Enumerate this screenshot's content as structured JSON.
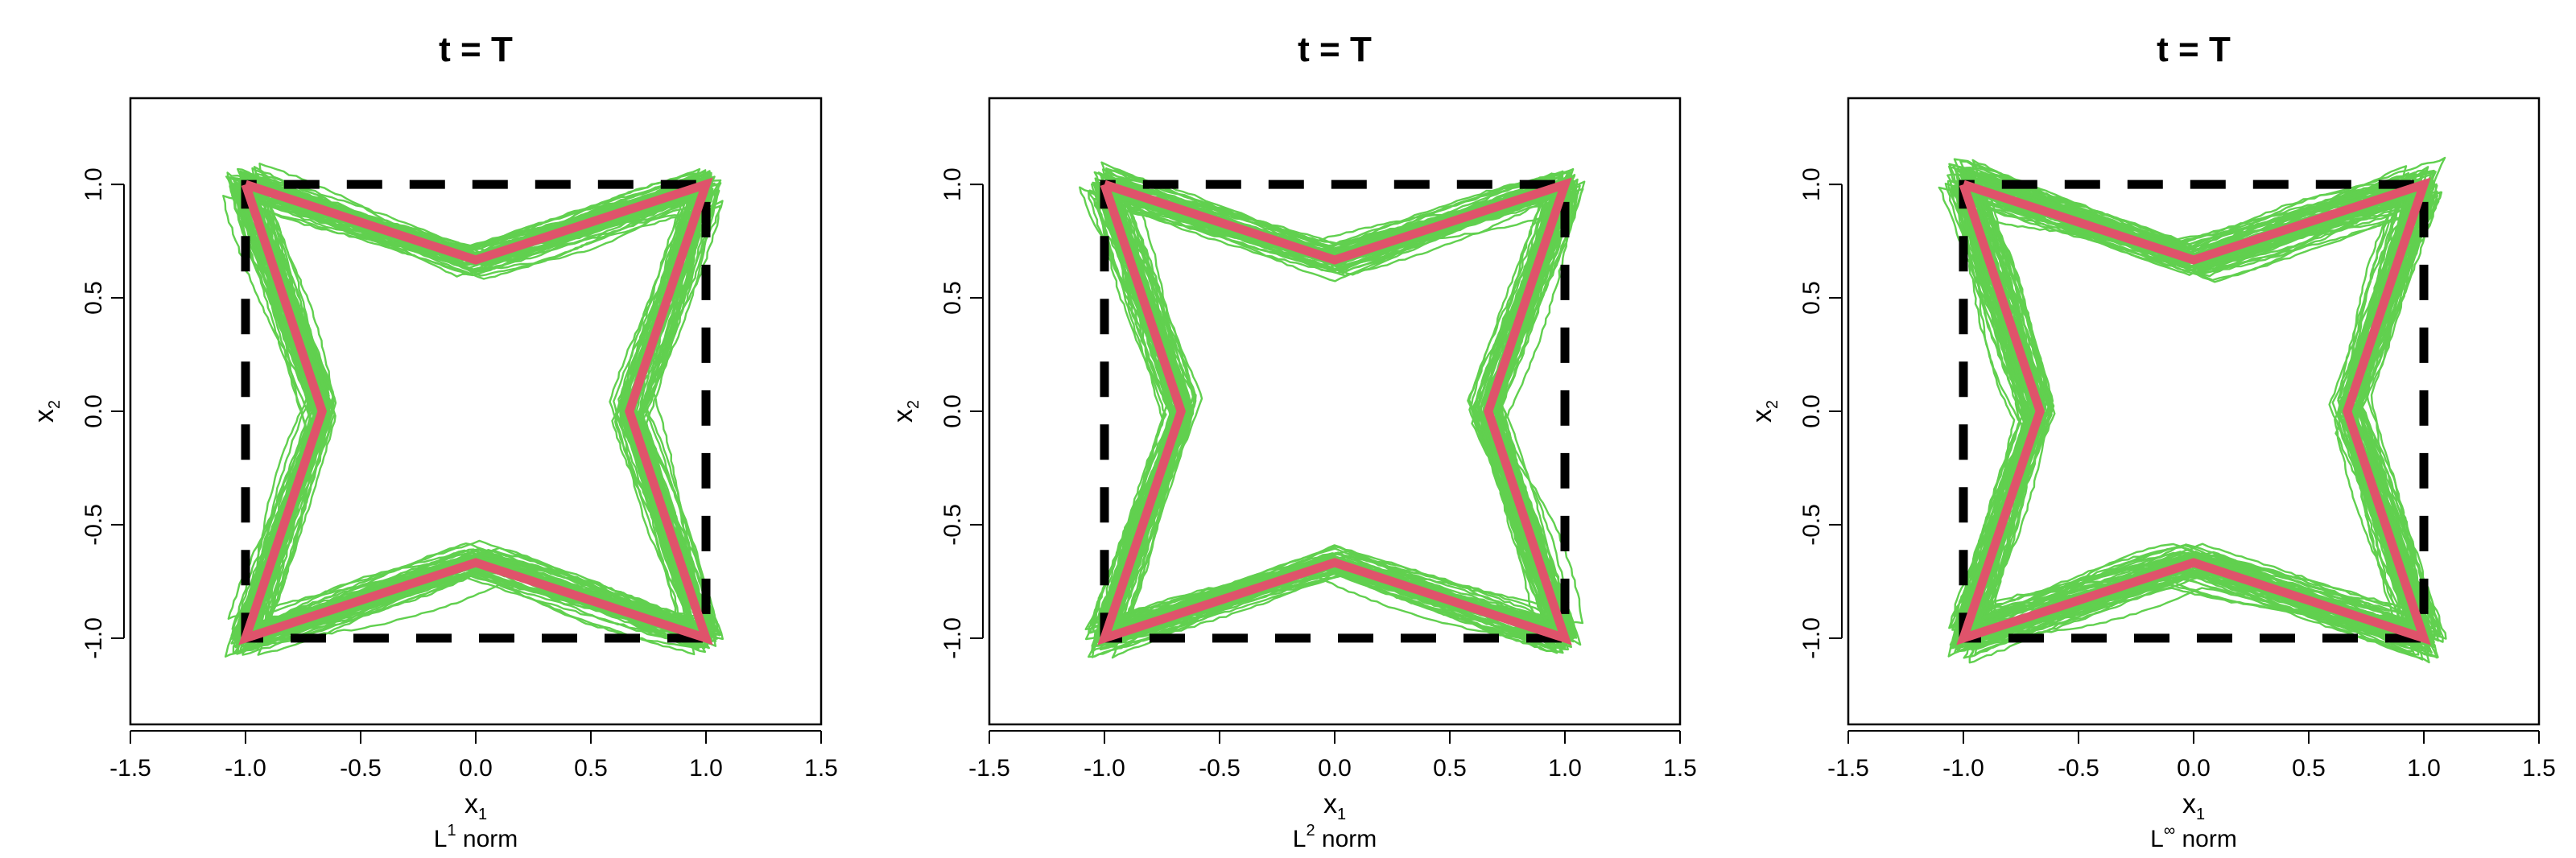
{
  "chart_data": [
    {
      "type": "line",
      "title": "t = T",
      "xlabel": "x",
      "xlabel_sub": "1",
      "ylabel": "x",
      "ylabel_sub": "2",
      "caption_prefix": "L",
      "caption_sup": "1",
      "caption_suffix": "norm",
      "xlim": [
        -1.5,
        1.5
      ],
      "ylim": [
        -1.38,
        1.38
      ],
      "xticks": [
        -1.5,
        -1.0,
        -0.5,
        0.0,
        0.5,
        1.0,
        1.5
      ],
      "xtick_labels": [
        "-1.5",
        "-1.0",
        "-0.5",
        "0.0",
        "0.5",
        "1.0",
        "1.5"
      ],
      "yticks": [
        -1.0,
        -0.5,
        0.0,
        0.5,
        1.0
      ],
      "ytick_labels": [
        "-1.0",
        "-0.5",
        "0.0",
        "0.5",
        "1.0"
      ],
      "grid": false,
      "colors": {
        "target": "#DF536B",
        "samples": "#61D04F",
        "square": "#000000"
      },
      "square": {
        "x": [
          -1,
          1,
          1,
          -1,
          -1
        ],
        "y": [
          -1,
          -1,
          1,
          1,
          -1
        ]
      },
      "target_curve": {
        "x": [
          -1.0,
          0.0,
          1.0,
          0.667,
          1.0,
          0.0,
          -1.0,
          -0.667,
          -1.0
        ],
        "y": [
          1.0,
          0.667,
          1.0,
          0.0,
          -1.0,
          -0.667,
          -1.0,
          0.0,
          1.0
        ]
      }
    },
    {
      "type": "line",
      "title": "t = T",
      "xlabel": "x",
      "xlabel_sub": "1",
      "ylabel": "x",
      "ylabel_sub": "2",
      "caption_prefix": "L",
      "caption_sup": "2",
      "caption_suffix": "norm",
      "xlim": [
        -1.5,
        1.5
      ],
      "ylim": [
        -1.38,
        1.38
      ],
      "xticks": [
        -1.5,
        -1.0,
        -0.5,
        0.0,
        0.5,
        1.0,
        1.5
      ],
      "xtick_labels": [
        "-1.5",
        "-1.0",
        "-0.5",
        "0.0",
        "0.5",
        "1.0",
        "1.5"
      ],
      "yticks": [
        -1.0,
        -0.5,
        0.0,
        0.5,
        1.0
      ],
      "ytick_labels": [
        "-1.0",
        "-0.5",
        "0.0",
        "0.5",
        "1.0"
      ],
      "grid": false,
      "colors": {
        "target": "#DF536B",
        "samples": "#61D04F",
        "square": "#000000"
      },
      "square": {
        "x": [
          -1,
          1,
          1,
          -1,
          -1
        ],
        "y": [
          -1,
          -1,
          1,
          1,
          -1
        ]
      },
      "target_curve": {
        "x": [
          -1.0,
          0.0,
          1.0,
          0.667,
          1.0,
          0.0,
          -1.0,
          -0.667,
          -1.0
        ],
        "y": [
          1.0,
          0.667,
          1.0,
          0.0,
          -1.0,
          -0.667,
          -1.0,
          0.0,
          1.0
        ]
      }
    },
    {
      "type": "line",
      "title": "t = T",
      "xlabel": "x",
      "xlabel_sub": "1",
      "ylabel": "x",
      "ylabel_sub": "2",
      "caption_prefix": "L",
      "caption_sup": "∞",
      "caption_suffix": "norm",
      "xlim": [
        -1.5,
        1.5
      ],
      "ylim": [
        -1.38,
        1.38
      ],
      "xticks": [
        -1.5,
        -1.0,
        -0.5,
        0.0,
        0.5,
        1.0,
        1.5
      ],
      "xtick_labels": [
        "-1.5",
        "-1.0",
        "-0.5",
        "0.0",
        "0.5",
        "1.0",
        "1.5"
      ],
      "yticks": [
        -1.0,
        -0.5,
        0.0,
        0.5,
        1.0
      ],
      "ytick_labels": [
        "-1.0",
        "-0.5",
        "0.0",
        "0.5",
        "1.0"
      ],
      "grid": false,
      "colors": {
        "target": "#DF536B",
        "samples": "#61D04F",
        "square": "#000000"
      },
      "square": {
        "x": [
          -1,
          1,
          1,
          -1,
          -1
        ],
        "y": [
          -1,
          -1,
          1,
          1,
          -1
        ]
      },
      "target_curve": {
        "x": [
          -1.0,
          0.0,
          1.0,
          0.667,
          1.0,
          0.0,
          -1.0,
          -0.667,
          -1.0
        ],
        "y": [
          1.0,
          0.667,
          1.0,
          0.0,
          -1.0,
          -0.667,
          -1.0,
          0.0,
          1.0
        ]
      }
    }
  ]
}
